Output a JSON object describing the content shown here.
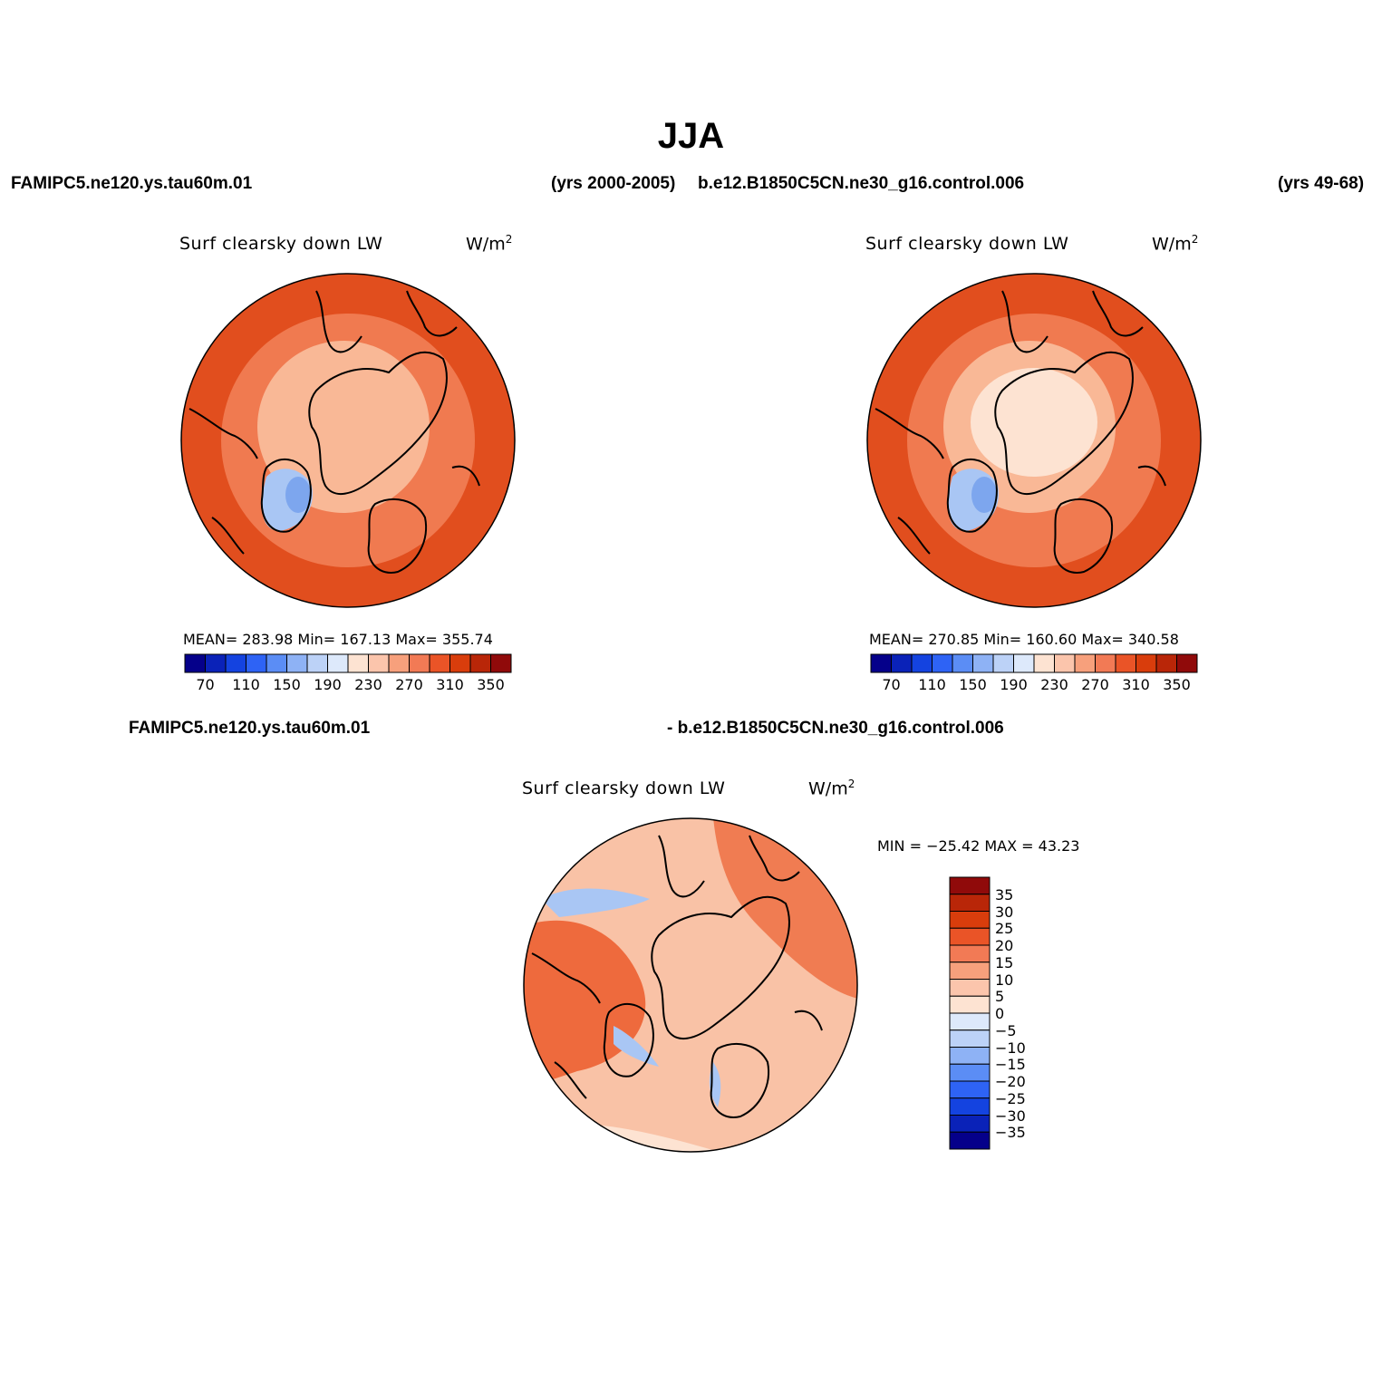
{
  "title": "JJA",
  "header": {
    "case1": "FAMIPC5.ne120.ys.tau60m.01",
    "years1": "(yrs 2000-2005)",
    "case2": "b.e12.B1850C5CN.ne30_g16.control.006",
    "years2": "(yrs 49-68)"
  },
  "diff_header": {
    "case1": "FAMIPC5.ne120.ys.tau60m.01",
    "case2": "- b.e12.B1850C5CN.ne30_g16.control.006"
  },
  "panels": [
    {
      "title": "Surf clearsky down LW",
      "units_base": "W/m",
      "units_exp": "2",
      "stats": "MEAN= 283.98   Min= 167.13   Max= 355.74"
    },
    {
      "title": "Surf clearsky down LW",
      "units_base": "W/m",
      "units_exp": "2",
      "stats": "MEAN= 270.85   Min= 160.60   Max= 340.58"
    },
    {
      "title": "Surf clearsky down LW",
      "units_base": "W/m",
      "units_exp": "2",
      "stats": "MIN = −25.42 MAX =  43.23"
    }
  ],
  "colorbar_abs": {
    "colors": [
      "#05008a",
      "#0a22b8",
      "#1443e0",
      "#2e63f5",
      "#5b8df5",
      "#8eb2f5",
      "#bcd2f7",
      "#dde9fb",
      "#fde3d2",
      "#fbc5ac",
      "#f7a07c",
      "#f27a55",
      "#ea5427",
      "#d93d0c",
      "#b92608",
      "#900a0a"
    ],
    "labels": [
      "70",
      "110",
      "150",
      "190",
      "230",
      "270",
      "310",
      "350"
    ]
  },
  "colorbar_diff": {
    "colors": [
      "#900a0a",
      "#b92608",
      "#d93d0c",
      "#ea5427",
      "#f27a55",
      "#f7a07c",
      "#fbc5ac",
      "#fde3d2",
      "#dde9fb",
      "#bcd2f7",
      "#8eb2f5",
      "#5b8df5",
      "#2e63f5",
      "#1443e0",
      "#0a22b8",
      "#05008a"
    ],
    "labels": [
      "35",
      "30",
      "25",
      "20",
      "15",
      "10",
      "5",
      "0",
      "−5",
      "−10",
      "−15",
      "−20",
      "−25",
      "−30",
      "−35"
    ]
  },
  "map_colors": {
    "ocean_warm": "#e14e1e",
    "mid": "#f07a50",
    "light": "#f9b896",
    "pale": "#fde3d2",
    "ice_blue": "#a9c6f4",
    "ice_deep": "#7da6ee",
    "diff_base": "#f9c2a6",
    "diff_strong": "#ee6a3d"
  }
}
